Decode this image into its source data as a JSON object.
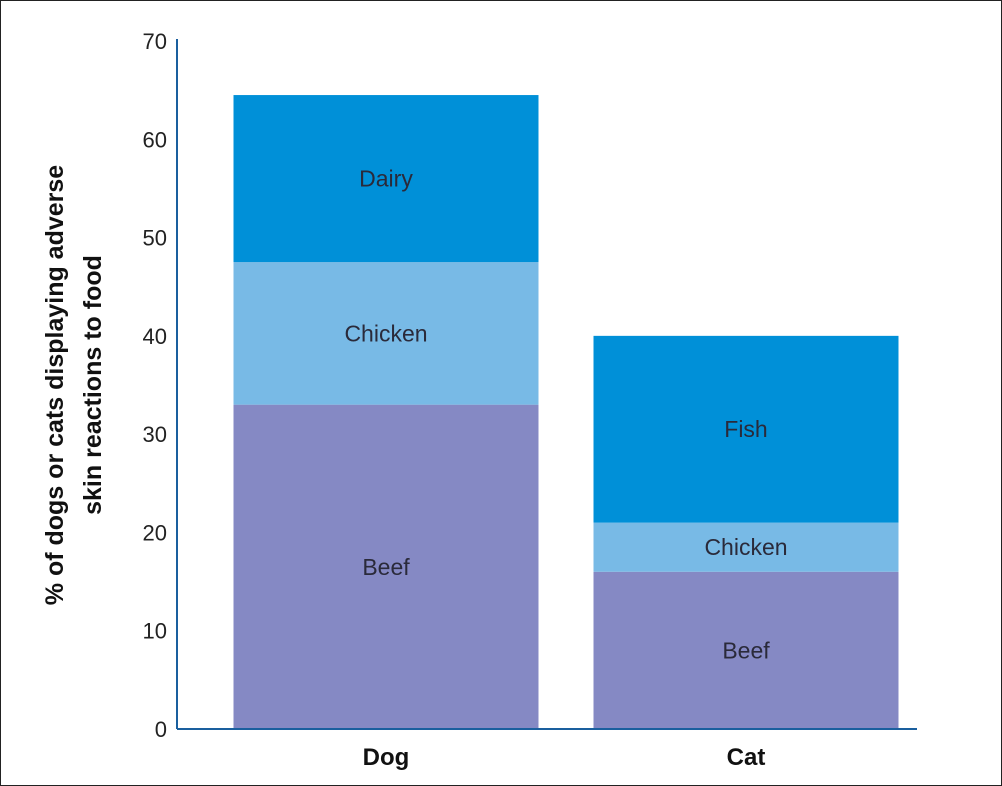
{
  "chart_data": {
    "type": "bar",
    "stacked": true,
    "title": "",
    "xlabel": "",
    "ylabel_lines": [
      "% of dogs or cats displaying adverse",
      "skin reactions to food"
    ],
    "ylim": [
      0,
      70
    ],
    "yticks": [
      0,
      10,
      20,
      30,
      40,
      50,
      60,
      70
    ],
    "grid": false,
    "legend": "none",
    "categories": [
      "Dog",
      "Cat"
    ],
    "stacks": [
      {
        "category": "Dog",
        "segments": [
          {
            "label": "Beef",
            "value": 33,
            "color": "#8589c4"
          },
          {
            "label": "Chicken",
            "value": 14.5,
            "color": "#78bae6"
          },
          {
            "label": "Dairy",
            "value": 17,
            "color": "#0090d8"
          }
        ]
      },
      {
        "category": "Cat",
        "segments": [
          {
            "label": "Beef",
            "value": 16,
            "color": "#8589c4"
          },
          {
            "label": "Chicken",
            "value": 5,
            "color": "#78bae6"
          },
          {
            "label": "Fish",
            "value": 19,
            "color": "#0090d8"
          }
        ]
      }
    ],
    "axis_color": "#1a5f9e"
  }
}
